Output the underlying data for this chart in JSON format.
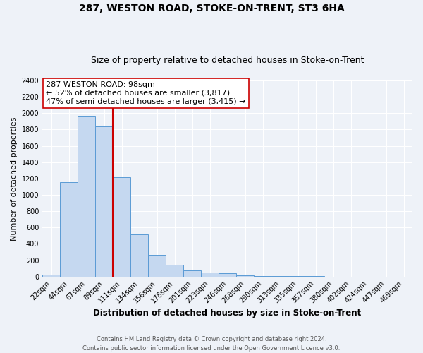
{
  "title": "287, WESTON ROAD, STOKE-ON-TRENT, ST3 6HA",
  "subtitle": "Size of property relative to detached houses in Stoke-on-Trent",
  "xlabel": "Distribution of detached houses by size in Stoke-on-Trent",
  "ylabel": "Number of detached properties",
  "bin_labels": [
    "22sqm",
    "44sqm",
    "67sqm",
    "89sqm",
    "111sqm",
    "134sqm",
    "156sqm",
    "178sqm",
    "201sqm",
    "223sqm",
    "246sqm",
    "268sqm",
    "290sqm",
    "313sqm",
    "335sqm",
    "357sqm",
    "380sqm",
    "402sqm",
    "424sqm",
    "447sqm",
    "469sqm"
  ],
  "bar_heights": [
    25,
    1155,
    1960,
    1840,
    1220,
    520,
    265,
    148,
    75,
    48,
    40,
    15,
    10,
    5,
    3,
    2,
    1,
    1,
    0,
    0,
    0
  ],
  "bar_color": "#c5d8f0",
  "bar_edge_color": "#5b9bd5",
  "vline_x_pos": 3.5,
  "vline_color": "#cc0000",
  "annotation_text": "287 WESTON ROAD: 98sqm\n← 52% of detached houses are smaller (3,817)\n47% of semi-detached houses are larger (3,415) →",
  "annotation_box_color": "#ffffff",
  "annotation_box_edge": "#cc0000",
  "ylim": [
    0,
    2400
  ],
  "yticks": [
    0,
    200,
    400,
    600,
    800,
    1000,
    1200,
    1400,
    1600,
    1800,
    2000,
    2200,
    2400
  ],
  "footer_text": "Contains HM Land Registry data © Crown copyright and database right 2024.\nContains public sector information licensed under the Open Government Licence v3.0.",
  "background_color": "#eef2f8",
  "grid_color": "#ffffff",
  "title_fontsize": 10,
  "subtitle_fontsize": 9,
  "xlabel_fontsize": 8.5,
  "ylabel_fontsize": 8,
  "tick_fontsize": 7,
  "annotation_fontsize": 8,
  "footer_fontsize": 6
}
